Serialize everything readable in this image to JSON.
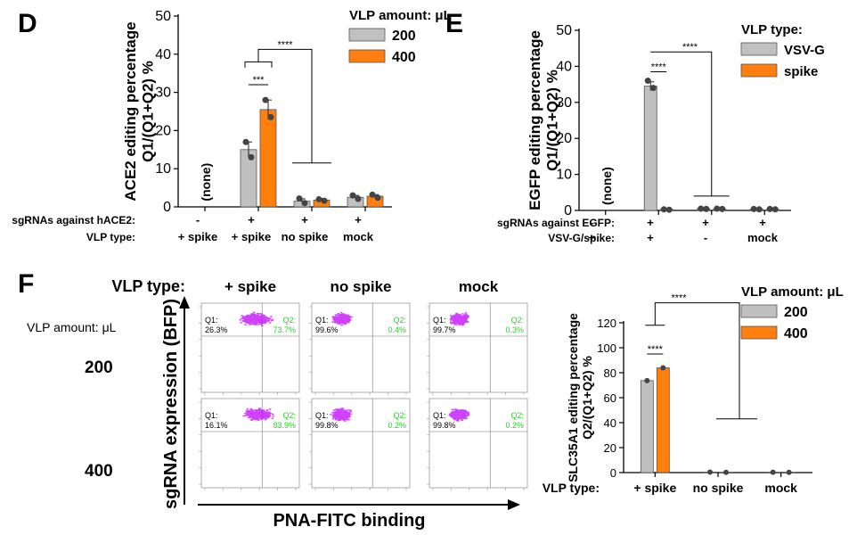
{
  "panel_letters": [
    "D",
    "E",
    "F"
  ],
  "colors": {
    "grey": "#c0c0c0",
    "orange": "#ff7f0e",
    "purple": "#c000ff",
    "green": "#33cc33"
  },
  "chart_data": [
    {
      "panel": "D",
      "type": "bar",
      "ylabel_lines": [
        "ACE2 editing percentage",
        "Q1/(Q1+Q2) %"
      ],
      "ylim": [
        0,
        50
      ],
      "yticks": [
        "0",
        "10",
        "20",
        "30",
        "40",
        "50"
      ],
      "legend_title": "VLP amount: μL",
      "series": [
        {
          "name": "200",
          "color": "#c0c0c0",
          "values": [
            null,
            15.0,
            1.5,
            2.5
          ]
        },
        {
          "name": "400",
          "color": "#ff7f0e",
          "values": [
            null,
            25.5,
            1.8,
            2.8
          ]
        }
      ],
      "dots": [
        [
          [],
          []
        ],
        [
          [
            17,
            13
          ],
          [
            28,
            23.5
          ]
        ],
        [
          [
            2.2,
            1.0
          ],
          [
            2.0,
            1.6
          ]
        ],
        [
          [
            3.0,
            2.1
          ],
          [
            3.2,
            2.4
          ]
        ]
      ],
      "none_label": "(none)",
      "sig_inner": "***",
      "sig_outer": "****",
      "row_labels": [
        "sgRNAs against hACE2:",
        "VLP type:"
      ],
      "row1": [
        "-",
        "+",
        "+",
        "+"
      ],
      "row2": [
        "+ spike",
        "+ spike",
        "no spike",
        "mock"
      ]
    },
    {
      "panel": "E",
      "type": "bar",
      "ylabel_lines": [
        "EGFP editing percentage",
        "Q1/(Q1+Q2) %"
      ],
      "ylim": [
        0,
        50
      ],
      "yticks": [
        "0",
        "10",
        "20",
        "30",
        "40",
        "50"
      ],
      "legend_title": "VLP type:",
      "series": [
        {
          "name": "VSV-G",
          "color": "#c0c0c0",
          "values": [
            null,
            34.5,
            0.5,
            0.4
          ]
        },
        {
          "name": "spike",
          "color": "#ff7f0e",
          "values": [
            null,
            0.3,
            0.4,
            0.3
          ]
        }
      ],
      "dots": [
        [
          [],
          []
        ],
        [
          [
            36,
            34
          ],
          [
            0.3,
            0.2
          ]
        ],
        [
          [
            0.5,
            0.4
          ],
          [
            0.5,
            0.4
          ]
        ],
        [
          [
            0.4,
            0.3
          ],
          [
            0.4,
            0.3
          ]
        ]
      ],
      "none_label": "(none)",
      "sig_inner": "****",
      "sig_outer": "****",
      "row_labels": [
        "sgRNAs against EGFP:",
        "VSV-G/spike:"
      ],
      "row1": [
        "-",
        "+",
        "+",
        "+"
      ],
      "row2": [
        "+",
        "+",
        "-",
        "mock"
      ]
    },
    {
      "panel": "F",
      "type": "bar",
      "ylabel_lines": [
        "SLC35A1 editing percentage",
        "Q2/(Q1+Q2) %"
      ],
      "ylim": [
        0,
        120
      ],
      "yticks": [
        "0",
        "20",
        "40",
        "60",
        "80",
        "100",
        "120"
      ],
      "legend_title": "VLP amount: μL",
      "series": [
        {
          "name": "200",
          "color": "#c0c0c0",
          "values": [
            73.7,
            0.4,
            0.3
          ]
        },
        {
          "name": "400",
          "color": "#ff7f0e",
          "values": [
            83.9,
            0.2,
            0.2
          ]
        }
      ],
      "dots": [
        [
          [
            73.7
          ],
          [
            83.9
          ]
        ],
        [
          [
            0.4
          ],
          [
            0.2
          ]
        ],
        [
          [
            0.3
          ],
          [
            0.2
          ]
        ]
      ],
      "sig_inner": "****",
      "sig_outer": "****",
      "xlabel": "VLP type:",
      "categories": [
        "+ spike",
        "no spike",
        "mock"
      ]
    }
  ],
  "flow": {
    "vlp_type_label": "VLP type:",
    "columns": [
      "+ spike",
      "no spike",
      "mock"
    ],
    "vlp_amount_label": "VLP amount: μL",
    "rows": [
      "200",
      "400"
    ],
    "ylabel": "sgRNA expression (BFP)",
    "xlabel": "PNA-FITC binding",
    "q1_label": "Q1:",
    "q2_label": "Q2:",
    "q1": [
      [
        "26.3%",
        "99.6%",
        "99.7%"
      ],
      [
        "16.1%",
        "99.8%",
        "99.8%"
      ]
    ],
    "q2": [
      [
        "73.7%",
        "0.4%",
        "0.3%"
      ],
      [
        "83.9%",
        "0.2%",
        "0.2%"
      ]
    ],
    "dot_mean": [
      [
        0.55,
        0.3,
        0.3
      ],
      [
        0.58,
        0.3,
        0.3
      ]
    ]
  }
}
